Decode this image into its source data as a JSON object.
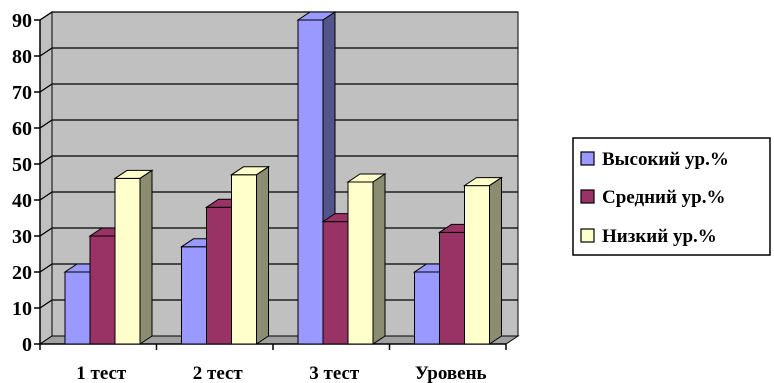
{
  "chart_data": {
    "type": "bar",
    "title": "",
    "xlabel": "",
    "ylabel": "",
    "categories": [
      "1 тест",
      "2 тест",
      "3 тест",
      "Уровень"
    ],
    "series": [
      {
        "name": "Высокий ур.%",
        "values": [
          20,
          27,
          90,
          20
        ],
        "color": "#9999ff"
      },
      {
        "name": "Средний ур.%",
        "values": [
          30,
          38,
          34,
          31
        ],
        "color": "#993366"
      },
      {
        "name": "Низкий ур.%",
        "values": [
          46,
          47,
          45,
          44
        ],
        "color": "#ffffcc"
      }
    ],
    "ylim": [
      0,
      90
    ],
    "yticks": [
      "0",
      "10",
      "20",
      "30",
      "40",
      "50",
      "60",
      "70",
      "80",
      "90"
    ],
    "grid": true,
    "plot_background": "#c0c0c0",
    "legend_position": "right"
  }
}
